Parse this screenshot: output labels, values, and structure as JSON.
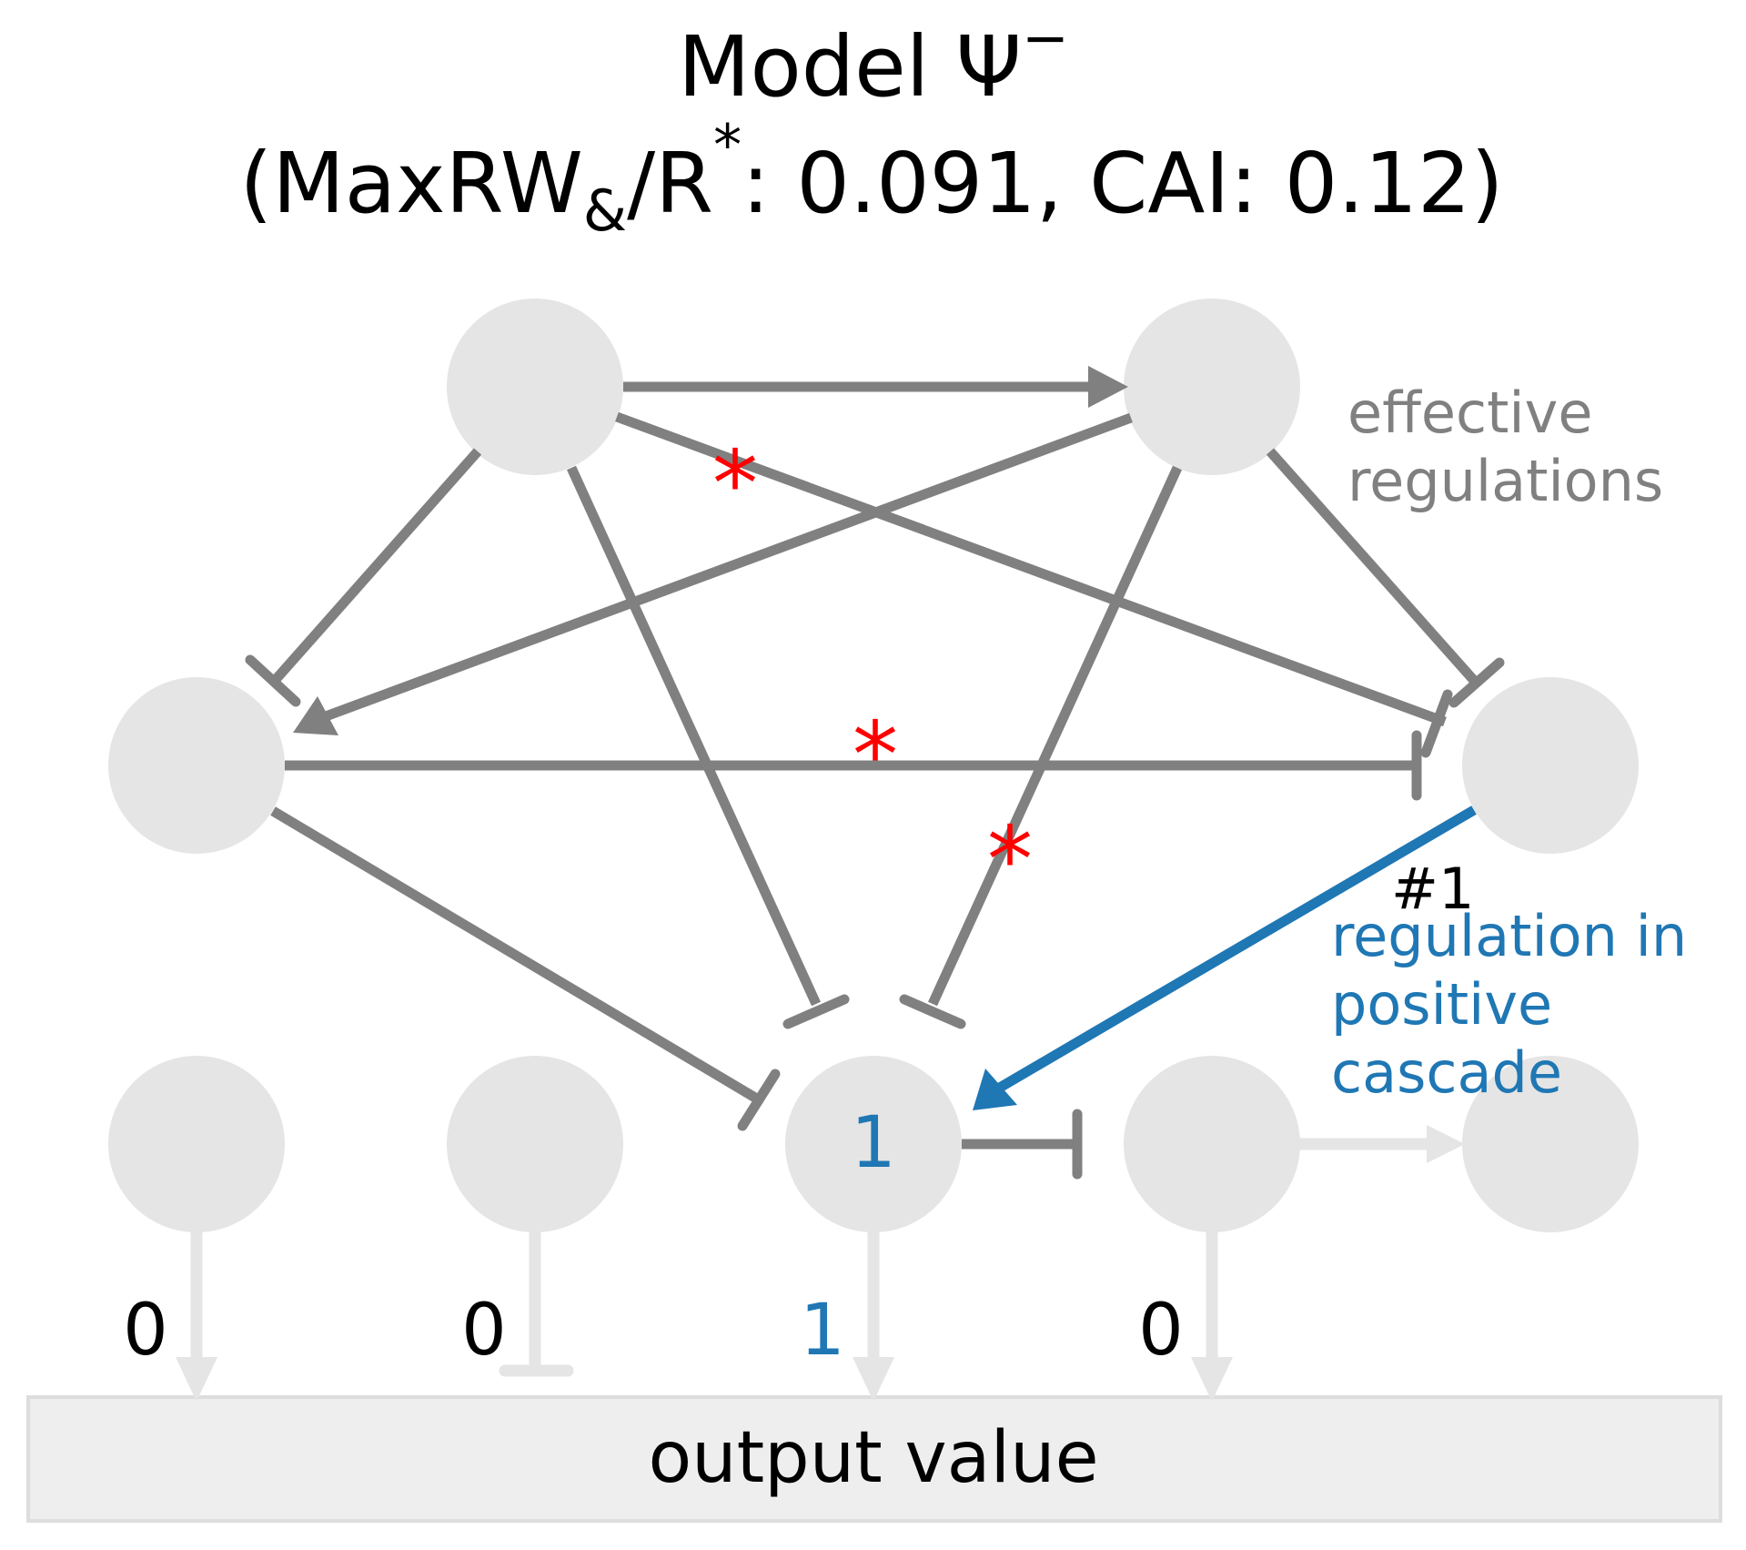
{
  "title": {
    "line1_main": "Model Ψ",
    "line1_sup": "−",
    "line2_open": "(MaxRW",
    "line2_sub": "&",
    "line2_slash": "/R",
    "line2_sup": "*",
    "line2_rest": ": 0.091, CAI: 0.12)"
  },
  "nodes": {
    "bottom_3_value": "1"
  },
  "annotations": {
    "effective_line1": "effective",
    "effective_line2": "regulations",
    "marker": "#1",
    "cascade_line1": "regulation in",
    "cascade_line2": "positive",
    "cascade_line3": "cascade",
    "asterisk": "*"
  },
  "outputs": {
    "out1": "0",
    "out2": "0",
    "out3": "1",
    "out4": "0"
  },
  "output_box_label": "output value",
  "colors": {
    "node_fill": "#e5e5e5",
    "effective_edge": "#808080",
    "inactive_edge": "#e5e5e5",
    "highlight_blue": "#1f77b4",
    "asterisk_red": "#ff0000",
    "output_box_fill": "#eeeeee",
    "output_box_border": "#dddddd"
  }
}
